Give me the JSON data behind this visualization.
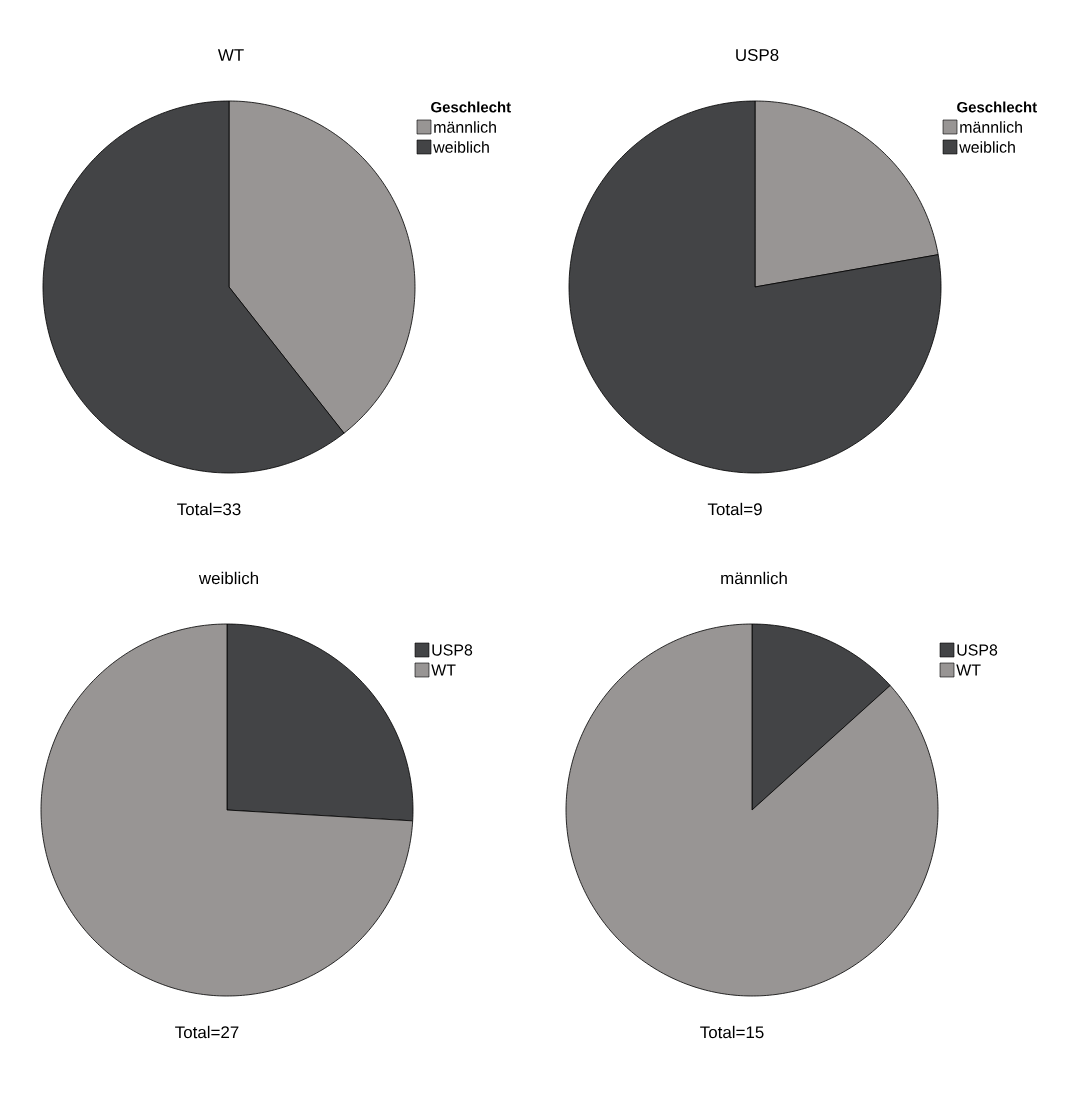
{
  "chart_data": [
    {
      "type": "pie",
      "title": "WT",
      "legend_title": "Geschlecht",
      "categories": [
        "männlich",
        "weiblich"
      ],
      "values": [
        39.39,
        60.61
      ],
      "colors": [
        "#989594",
        "#434446"
      ],
      "legend": "right",
      "annotations": [
        "Total=33"
      ]
    },
    {
      "type": "pie",
      "title": "USP8",
      "legend_title": "Geschlecht",
      "categories": [
        "männlich",
        "weiblich"
      ],
      "values": [
        22.22,
        77.78
      ],
      "colors": [
        "#989594",
        "#434446"
      ],
      "legend": "right",
      "annotations": [
        "Total=9"
      ]
    },
    {
      "type": "pie",
      "title": "weiblich",
      "categories": [
        "USP8",
        "WT"
      ],
      "values": [
        25.93,
        74.07
      ],
      "colors": [
        "#434446",
        "#989594"
      ],
      "legend": "right",
      "annotations": [
        "Total=27"
      ]
    },
    {
      "type": "pie",
      "title": "männlich",
      "categories": [
        "USP8",
        "WT"
      ],
      "values": [
        13.33,
        86.67
      ],
      "colors": [
        "#434446",
        "#989594"
      ],
      "legend": "right",
      "annotations": [
        "Total=15"
      ]
    }
  ]
}
